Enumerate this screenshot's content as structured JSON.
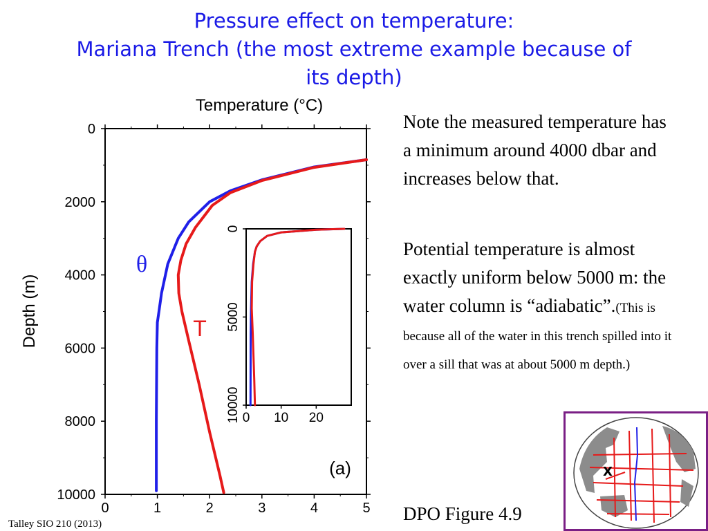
{
  "title": {
    "line1": "Pressure effect on temperature:",
    "line2": "Mariana Trench (the most extreme example because of",
    "line3": "its depth)"
  },
  "text": {
    "para1": "Note the measured temperature has a minimum around 4000 dbar and increases below that.",
    "para2_main": "Potential temperature is almost exactly uniform below 5000 m: the water column is “adiabatic”.",
    "para2_small": "(This is because all of the water in this trench spilled into it over a sill that was at about 5000 m depth.)",
    "figure_ref": "DPO Figure 4.9",
    "credit": "Talley SIO 210 (2013)"
  },
  "colors": {
    "title": "#1a1ae6",
    "theta": "#1f1fe8",
    "T": "#e61a1a",
    "map_border": "#7a1f85"
  },
  "map": {
    "marker": "X"
  },
  "chart_data": [
    {
      "type": "line",
      "title": "Temperature (°C)",
      "xlabel": "Temperature (°C)",
      "ylabel": "Depth (m)",
      "xlim": [
        0,
        5
      ],
      "ylim": [
        0,
        10000
      ],
      "y_inverted": true,
      "x_ticks": [
        "0",
        "1",
        "2",
        "3",
        "4",
        "5"
      ],
      "y_ticks": [
        "0",
        "2000",
        "4000",
        "6000",
        "8000",
        "10000"
      ],
      "panel_label": "(a)",
      "series": [
        {
          "name": "θ",
          "color": "#1f1fe8",
          "x": [
            5.0,
            4.0,
            3.0,
            2.4,
            2.0,
            1.6,
            1.4,
            1.2,
            1.08,
            1.03,
            1.0,
            0.99,
            0.98,
            0.98
          ],
          "y": [
            850,
            1050,
            1400,
            1700,
            2000,
            2550,
            3000,
            3700,
            4500,
            5000,
            5300,
            6000,
            8000,
            9900
          ]
        },
        {
          "name": "T",
          "color": "#e61a1a",
          "x": [
            5.0,
            4.0,
            3.0,
            2.4,
            2.05,
            1.73,
            1.55,
            1.45,
            1.4,
            1.41,
            1.47,
            1.6,
            1.8,
            2.0,
            2.2,
            2.27
          ],
          "y": [
            850,
            1060,
            1420,
            1750,
            2100,
            2700,
            3150,
            3600,
            4000,
            4500,
            5000,
            5800,
            7000,
            8300,
            9500,
            9950
          ]
        }
      ]
    },
    {
      "type": "line",
      "inset": true,
      "xlim": [
        0,
        30
      ],
      "ylim": [
        0,
        10000
      ],
      "y_inverted": true,
      "x_ticks": [
        "0",
        "10",
        "20"
      ],
      "y_ticks": [
        "0",
        "5000",
        "10000"
      ],
      "series": [
        {
          "name": "θ",
          "color": "#1f1fe8",
          "x": [
            28,
            20,
            10,
            6,
            4,
            3,
            2.5,
            2.0,
            1.6,
            1.4,
            1.3,
            1.25
          ],
          "y": [
            0,
            50,
            200,
            400,
            700,
            1000,
            1300,
            2000,
            3000,
            4500,
            6000,
            10000
          ]
        },
        {
          "name": "T",
          "color": "#e61a1a",
          "x": [
            28,
            20,
            10,
            6,
            4,
            3,
            2.5,
            2.1,
            1.7,
            1.6,
            1.9,
            2.3,
            2.5
          ],
          "y": [
            0,
            50,
            200,
            400,
            700,
            1000,
            1300,
            2000,
            3000,
            4500,
            6000,
            8500,
            10000
          ]
        }
      ]
    }
  ]
}
